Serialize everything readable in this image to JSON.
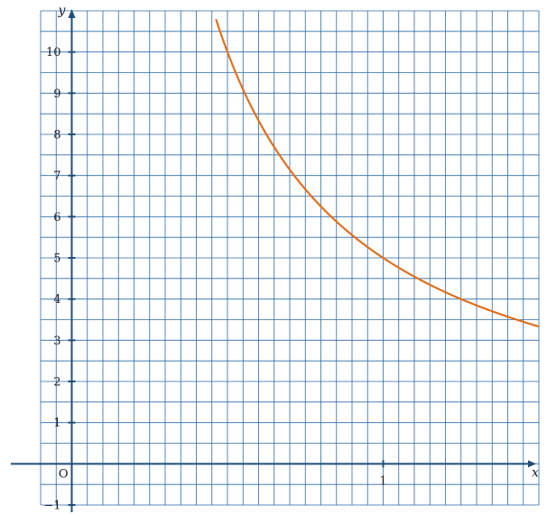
{
  "chart_data": {
    "type": "line",
    "function": "y = 5/x",
    "xlim": [
      -0.1,
      1.5
    ],
    "ylim": [
      -1,
      11
    ],
    "x_grid_step": 0.05,
    "y_grid_step": 0.5,
    "x_tick_labels": [
      {
        "value": 1,
        "label": "1"
      }
    ],
    "y_tick_labels": [
      {
        "value": -1,
        "label": "−1"
      },
      {
        "value": 1,
        "label": "1"
      },
      {
        "value": 2,
        "label": "2"
      },
      {
        "value": 3,
        "label": "3"
      },
      {
        "value": 4,
        "label": "4"
      },
      {
        "value": 5,
        "label": "5"
      },
      {
        "value": 6,
        "label": "6"
      },
      {
        "value": 7,
        "label": "7"
      },
      {
        "value": 8,
        "label": "8"
      },
      {
        "value": 9,
        "label": "9"
      },
      {
        "value": 10,
        "label": "10"
      }
    ],
    "origin_label": "O",
    "xlabel": "x",
    "ylabel": "y",
    "grid": true,
    "colors": {
      "grid": "#2c6aa8",
      "axes": "#1f4e79",
      "curve": "#e0701e"
    },
    "series": [
      {
        "points": [
          {
            "x": 0.463,
            "y": 10.8
          },
          {
            "x": 0.5,
            "y": 10
          },
          {
            "x": 0.6,
            "y": 8.33
          },
          {
            "x": 0.7,
            "y": 7.14
          },
          {
            "x": 0.8,
            "y": 6.25
          },
          {
            "x": 0.9,
            "y": 5.56
          },
          {
            "x": 1.0,
            "y": 5.0
          },
          {
            "x": 1.1,
            "y": 4.55
          },
          {
            "x": 1.2,
            "y": 4.17
          },
          {
            "x": 1.3,
            "y": 3.85
          },
          {
            "x": 1.4,
            "y": 3.57
          },
          {
            "x": 1.5,
            "y": 3.33
          }
        ]
      }
    ]
  }
}
